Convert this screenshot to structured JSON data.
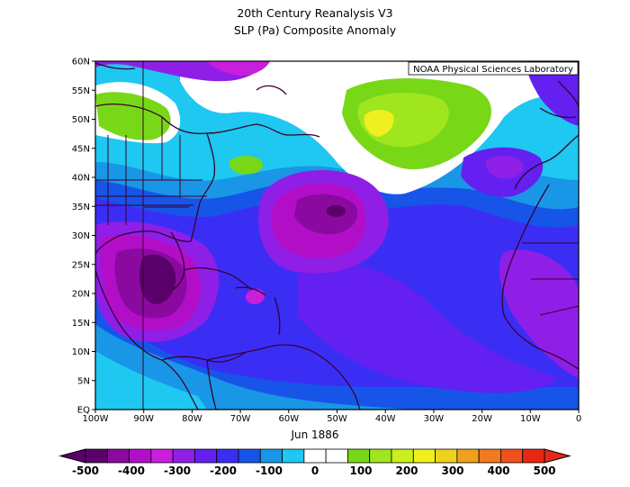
{
  "title_line1": "20th Century Reanalysis V3",
  "title_line2": "SLP (Pa) Composite Anomaly",
  "credit": "NOAA Physical Sciences Laboratory",
  "date_label": "Jun 1886",
  "lat_ticks": [
    "60N",
    "55N",
    "50N",
    "45N",
    "40N",
    "35N",
    "30N",
    "25N",
    "20N",
    "15N",
    "10N",
    "5N",
    "EQ"
  ],
  "lon_ticks": [
    "100W",
    "90W",
    "80W",
    "70W",
    "60W",
    "50W",
    "40W",
    "30W",
    "20W",
    "10W",
    "0"
  ],
  "colorbar": {
    "labels": [
      "-500",
      "-400",
      "-300",
      "-200",
      "-100",
      "0",
      "100",
      "200",
      "300",
      "400",
      "500"
    ],
    "colors": [
      "#5a006a",
      "#8a0aa0",
      "#b20ec8",
      "#c81fdc",
      "#8f1fe6",
      "#6320f0",
      "#3a2ef5",
      "#1655e8",
      "#1a96e6",
      "#1ec8f0",
      "#ffffff",
      "#ffffff",
      "#78d818",
      "#a0e61e",
      "#c8f01e",
      "#f0f01e",
      "#f0d21e",
      "#f0a01e",
      "#f07a1e",
      "#f0501e",
      "#e62814"
    ]
  },
  "map_extent": {
    "lon": [
      -100,
      0
    ],
    "lat": [
      0,
      60
    ]
  }
}
